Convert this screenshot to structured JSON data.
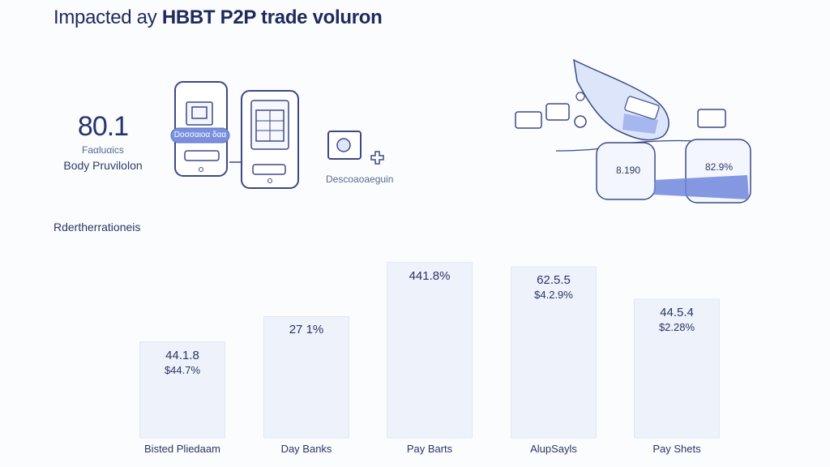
{
  "header": {
    "title_light": "Impacted ay ",
    "title_bold": "HBBT P2P trade voluron"
  },
  "metric": {
    "value": "80.1",
    "caption": "Faαluαics",
    "label": "Body Pruvilolon"
  },
  "illustration": {
    "phone_chip": "Dοσσαιοα δαα",
    "description": "Descoaoaeguin",
    "card_left": "8.190",
    "card_right": "82.9%"
  },
  "section": {
    "label": "Rdertherrationeis"
  },
  "chart_data": {
    "type": "bar",
    "title": "",
    "xlabel": "",
    "ylabel": "",
    "categories": [
      "Bisted Pliedaam",
      "Day Banks",
      "Pay Barts",
      "AlupSayls",
      "Pay Shets"
    ],
    "values": [
      44.3,
      56.0,
      81.0,
      79.0,
      64.0
    ],
    "value_labels": [
      "44.1.8",
      "27 1%",
      "441.8%",
      "62.5.5",
      "44.5.4"
    ],
    "sub_labels": [
      "$44.7%",
      "",
      "",
      "$4.2.9%",
      "$2.28%"
    ],
    "ylim": [
      0,
      100
    ],
    "grid": false,
    "bar_color": "#eef2fb",
    "bar_stroke": "#e2e8f5"
  },
  "colors": {
    "accent": "#6f87dc",
    "ink": "#2a3565",
    "line": "#3b4a86"
  }
}
